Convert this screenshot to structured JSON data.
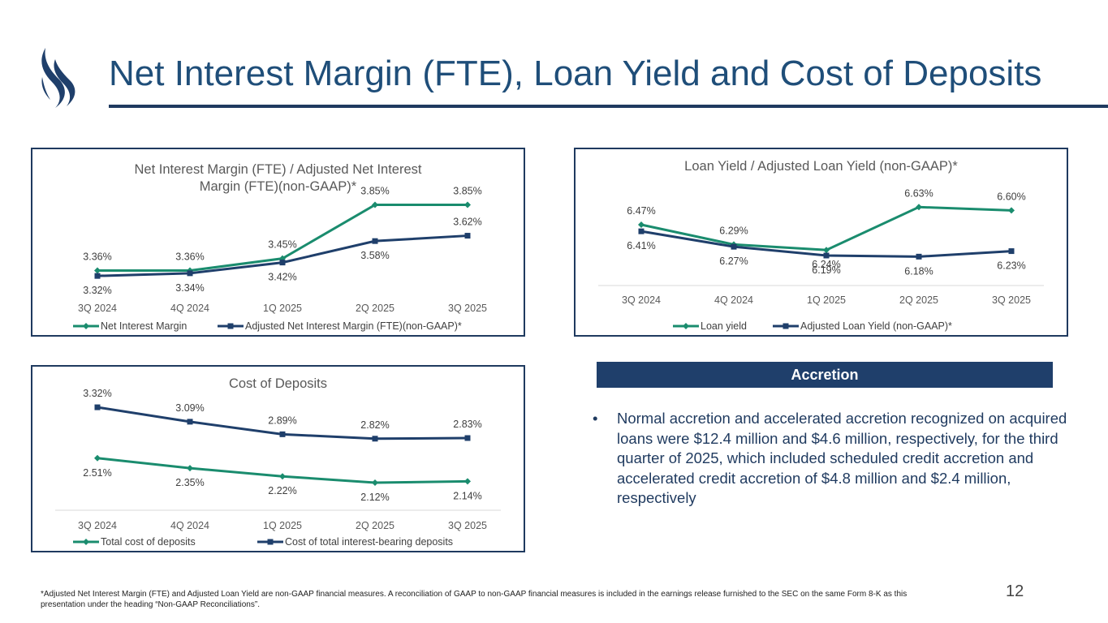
{
  "title": "Net Interest Margin (FTE), Loan Yield and Cost of Deposits",
  "colors": {
    "green": "#1a8c6e",
    "navy": "#1f3f6b",
    "panel_border": "#1f3a5f",
    "title": "#1f4e79"
  },
  "chart_data": [
    {
      "type": "line",
      "title": "Net Interest Margin (FTE) / Adjusted Net Interest Margin (FTE)(non-GAAP)*",
      "title_lines": [
        "Net Interest Margin (FTE) / Adjusted Net Interest",
        "Margin (FTE)(non-GAAP)*"
      ],
      "categories": [
        "3Q 2024",
        "4Q 2024",
        "1Q 2025",
        "2Q 2025",
        "3Q 2025"
      ],
      "series": [
        {
          "name": "Net Interest Margin",
          "values": [
            3.36,
            3.36,
            3.45,
            3.85,
            3.85
          ],
          "labels": [
            "3.36%",
            "3.36%",
            "3.45%",
            "3.85%",
            "3.85%"
          ],
          "color": "#1a8c6e",
          "marker": "diamond"
        },
        {
          "name": "Adjusted Net Interest Margin (FTE)(non-GAAP)*",
          "values": [
            3.32,
            3.34,
            3.42,
            3.58,
            3.62
          ],
          "labels": [
            "3.32%",
            "3.34%",
            "3.42%",
            "3.58%",
            "3.62%"
          ],
          "color": "#1f3f6b",
          "marker": "square"
        }
      ],
      "legend": "bottom",
      "grid": false
    },
    {
      "type": "line",
      "title": "Loan Yield / Adjusted Loan Yield (non-GAAP)*",
      "title_lines": [
        "Loan Yield / Adjusted Loan Yield (non-GAAP)*"
      ],
      "categories": [
        "3Q 2024",
        "4Q 2024",
        "1Q 2025",
        "2Q 2025",
        "3Q 2025"
      ],
      "series": [
        {
          "name": "Loan yield",
          "values": [
            6.47,
            6.29,
            6.24,
            6.63,
            6.6
          ],
          "labels": [
            "6.47%",
            "6.29%",
            "6.24%",
            "6.63%",
            "6.60%"
          ],
          "color": "#1a8c6e",
          "marker": "diamond"
        },
        {
          "name": "Adjusted Loan Yield (non-GAAP)*",
          "values": [
            6.41,
            6.27,
            6.19,
            6.18,
            6.23
          ],
          "labels": [
            "6.41%",
            "6.27%",
            "6.19%",
            "6.18%",
            "6.23%"
          ],
          "color": "#1f3f6b",
          "marker": "square"
        }
      ],
      "legend": "bottom",
      "grid": false
    },
    {
      "type": "line",
      "title": "Cost of Deposits",
      "title_lines": [
        "Cost of Deposits"
      ],
      "categories": [
        "3Q 2024",
        "4Q 2024",
        "1Q 2025",
        "2Q 2025",
        "3Q 2025"
      ],
      "series": [
        {
          "name": "Total cost of deposits",
          "values": [
            2.51,
            2.35,
            2.22,
            2.12,
            2.14
          ],
          "labels": [
            "2.51%",
            "2.35%",
            "2.22%",
            "2.12%",
            "2.14%"
          ],
          "color": "#1a8c6e",
          "marker": "diamond"
        },
        {
          "name": "Cost of total interest-bearing deposits",
          "values": [
            3.32,
            3.09,
            2.89,
            2.82,
            2.83
          ],
          "labels": [
            "3.32%",
            "3.09%",
            "2.89%",
            "2.82%",
            "2.83%"
          ],
          "color": "#1f3f6b",
          "marker": "square"
        }
      ],
      "legend": "bottom",
      "grid": false
    }
  ],
  "accretion": {
    "heading": "Accretion",
    "bullet_symbol": "•",
    "bullet": "Normal accretion and accelerated accretion recognized on acquired loans were $12.4 million and $4.6 million, respectively, for the third quarter of 2025, which included scheduled credit accretion and accelerated credit accretion of $4.8 million and $2.4 million, respectively"
  },
  "footnote": "*Adjusted Net Interest Margin (FTE) and Adjusted Loan Yield are non-GAAP financial measures. A reconciliation of GAAP to non-GAAP financial measures is included in the earnings release furnished to the SEC on the same Form 8-K as this presentation under the heading “Non-GAAP Reconciliations”.",
  "page_number": "12"
}
